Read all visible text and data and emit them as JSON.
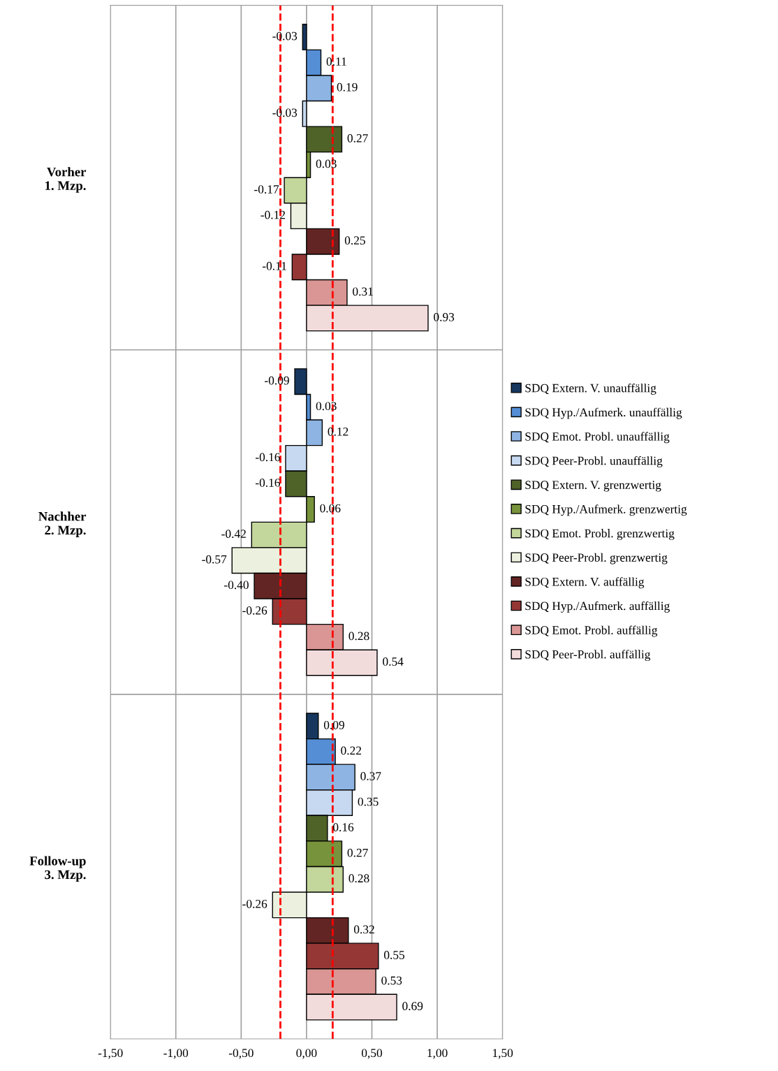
{
  "chart_data": {
    "type": "bar",
    "orientation": "horizontal",
    "categories": [
      "Vorher\n1. Mzp.",
      "Nachher\n2. Mzp.",
      "Follow-up\n3. Mzp."
    ],
    "series": [
      {
        "name": "SDQ Extern. V. unauffällig",
        "color": "#17375e",
        "values": [
          -0.03,
          -0.09,
          0.09
        ],
        "value_labels": [
          "-0.03",
          "-0.09",
          "0.09"
        ]
      },
      {
        "name": "SDQ Hyp./Aufmerk. unauffällig",
        "color": "#558ed5",
        "values": [
          0.11,
          0.03,
          0.22
        ],
        "value_labels": [
          "0.11",
          "0.03",
          "0.22"
        ]
      },
      {
        "name": "SDQ Emot. Probl. unauffällig",
        "color": "#8db4e2",
        "values": [
          0.19,
          0.12,
          0.37
        ],
        "value_labels": [
          "0.19",
          "0.12",
          "0.37"
        ]
      },
      {
        "name": "SDQ Peer-Probl. unauffällig",
        "color": "#c6d9f1",
        "values": [
          -0.03,
          -0.16,
          0.35
        ],
        "value_labels": [
          "-0.03",
          "-0.16",
          "0.35"
        ]
      },
      {
        "name": "SDQ Extern. V. grenzwertig",
        "color": "#4f6228",
        "values": [
          0.27,
          -0.16,
          0.16
        ],
        "value_labels": [
          "0.27",
          "-0.16",
          "0.16"
        ]
      },
      {
        "name": "SDQ Hyp./Aufmerk. grenzwertig",
        "color": "#77933c",
        "values": [
          0.03,
          0.06,
          0.27
        ],
        "value_labels": [
          "0.03",
          "0.06",
          "0.27"
        ]
      },
      {
        "name": "SDQ Emot. Probl. grenzwertig",
        "color": "#c3d69b",
        "values": [
          -0.17,
          -0.42,
          0.28
        ],
        "value_labels": [
          "-0.17",
          "-0.42",
          "0.28"
        ]
      },
      {
        "name": "SDQ Peer-Probl. grenzwertig",
        "color": "#ebf1de",
        "values": [
          -0.12,
          -0.57,
          -0.26
        ],
        "value_labels": [
          "-0.12",
          "-0.57",
          "-0.26"
        ]
      },
      {
        "name": "SDQ Extern. V. auffällig",
        "color": "#632523",
        "values": [
          0.25,
          -0.4,
          0.32
        ],
        "value_labels": [
          "0.25",
          "-0.40",
          "0.32"
        ]
      },
      {
        "name": "SDQ Hyp./Aufmerk. auffällig",
        "color": "#953735",
        "values": [
          -0.11,
          -0.26,
          0.55
        ],
        "value_labels": [
          "-0.11",
          "-0.26",
          "0.55"
        ]
      },
      {
        "name": "SDQ Emot. Probl. auffällig",
        "color": "#d99694",
        "values": [
          0.31,
          0.28,
          0.53
        ],
        "value_labels": [
          "0.31",
          "0.28",
          "0.53"
        ]
      },
      {
        "name": "SDQ Peer-Probl. auffällig",
        "color": "#f2dcdb",
        "values": [
          0.93,
          0.54,
          0.69
        ],
        "value_labels": [
          "0.93",
          "0.54",
          "0.69"
        ]
      }
    ],
    "xlim": [
      -1.5,
      1.5
    ],
    "xticks": [
      {
        "value": -1.5,
        "label": "-1,50"
      },
      {
        "value": -1.0,
        "label": "-1,00"
      },
      {
        "value": -0.5,
        "label": "-0,50"
      },
      {
        "value": 0.0,
        "label": "0,00"
      },
      {
        "value": 0.5,
        "label": "0,50"
      },
      {
        "value": 1.0,
        "label": "1,00"
      },
      {
        "value": 1.5,
        "label": "1,50"
      }
    ],
    "ref_lines": [
      {
        "axis": "x",
        "value": -0.2,
        "label": null,
        "color": "#ff0000",
        "line_style": "dashed"
      },
      {
        "axis": "x",
        "value": 0.2,
        "label": null,
        "color": "#ff0000",
        "line_style": "dashed"
      }
    ],
    "grid": true,
    "legend": "right"
  }
}
